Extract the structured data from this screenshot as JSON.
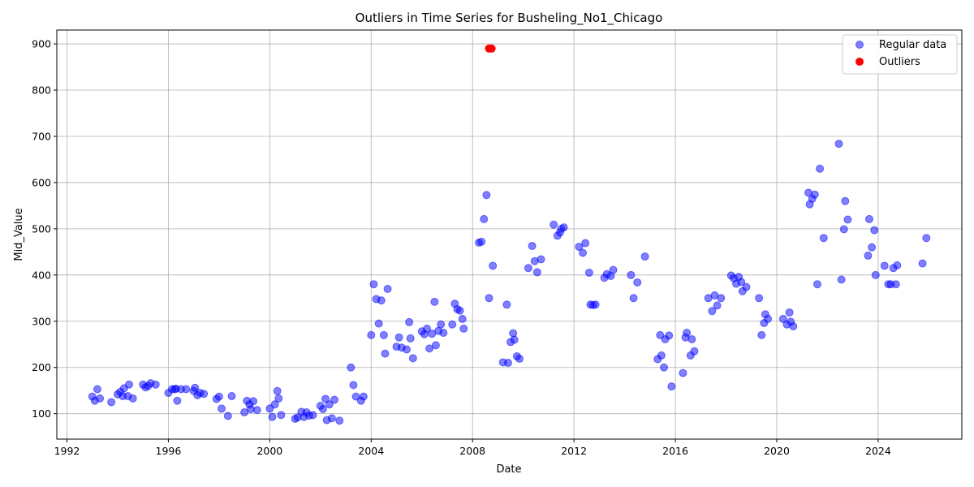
{
  "chart_data": {
    "type": "scatter",
    "title": "Outliers in Time Series for Busheling_No1_Chicago",
    "xlabel": "Date",
    "ylabel": "Mid_Value",
    "xlim": [
      1991.6,
      2027.3
    ],
    "ylim": [
      45,
      930
    ],
    "x_ticks": [
      1992,
      1996,
      2000,
      2004,
      2008,
      2012,
      2016,
      2020,
      2024
    ],
    "y_ticks": [
      100,
      200,
      300,
      400,
      500,
      600,
      700,
      800,
      900
    ],
    "grid": true,
    "legend_position": "top-right",
    "series": [
      {
        "name": "Regular data",
        "color": "#0000ff",
        "alpha": 0.5,
        "points": [
          [
            1993.0,
            137
          ],
          [
            1993.1,
            128
          ],
          [
            1993.2,
            153
          ],
          [
            1993.3,
            133
          ],
          [
            1993.75,
            125
          ],
          [
            1994.0,
            142
          ],
          [
            1994.1,
            147
          ],
          [
            1994.2,
            138
          ],
          [
            1994.25,
            155
          ],
          [
            1994.4,
            138
          ],
          [
            1994.45,
            163
          ],
          [
            1994.6,
            133
          ],
          [
            1995.0,
            163
          ],
          [
            1995.1,
            157
          ],
          [
            1995.2,
            160
          ],
          [
            1995.3,
            166
          ],
          [
            1995.5,
            163
          ],
          [
            1996.0,
            145
          ],
          [
            1996.15,
            153
          ],
          [
            1996.25,
            153
          ],
          [
            1996.3,
            154
          ],
          [
            1996.35,
            128
          ],
          [
            1996.5,
            153
          ],
          [
            1996.7,
            153
          ],
          [
            1997.0,
            149
          ],
          [
            1997.05,
            156
          ],
          [
            1997.15,
            140
          ],
          [
            1997.25,
            145
          ],
          [
            1997.4,
            143
          ],
          [
            1997.9,
            132
          ],
          [
            1998.0,
            137
          ],
          [
            1998.1,
            111
          ],
          [
            1998.35,
            95
          ],
          [
            1998.5,
            138
          ],
          [
            1999.0,
            103
          ],
          [
            1999.1,
            128
          ],
          [
            1999.2,
            120
          ],
          [
            1999.25,
            110
          ],
          [
            1999.35,
            127
          ],
          [
            1999.5,
            108
          ],
          [
            2000.0,
            111
          ],
          [
            2000.1,
            93
          ],
          [
            2000.2,
            120
          ],
          [
            2000.3,
            149
          ],
          [
            2000.35,
            133
          ],
          [
            2000.45,
            97
          ],
          [
            2001.0,
            89
          ],
          [
            2001.1,
            92
          ],
          [
            2001.25,
            104
          ],
          [
            2001.35,
            93
          ],
          [
            2001.45,
            103
          ],
          [
            2001.55,
            96
          ],
          [
            2001.7,
            97
          ],
          [
            2002.0,
            117
          ],
          [
            2002.1,
            110
          ],
          [
            2002.2,
            132
          ],
          [
            2002.25,
            86
          ],
          [
            2002.35,
            120
          ],
          [
            2002.45,
            90
          ],
          [
            2002.55,
            130
          ],
          [
            2002.75,
            85
          ],
          [
            2003.2,
            200
          ],
          [
            2003.3,
            162
          ],
          [
            2003.4,
            137
          ],
          [
            2003.6,
            128
          ],
          [
            2003.7,
            137
          ],
          [
            2004.0,
            270
          ],
          [
            2004.1,
            380
          ],
          [
            2004.2,
            348
          ],
          [
            2004.3,
            295
          ],
          [
            2004.4,
            345
          ],
          [
            2004.5,
            270
          ],
          [
            2004.55,
            230
          ],
          [
            2004.65,
            370
          ],
          [
            2005.0,
            245
          ],
          [
            2005.1,
            265
          ],
          [
            2005.2,
            243
          ],
          [
            2005.4,
            239
          ],
          [
            2005.5,
            298
          ],
          [
            2005.55,
            263
          ],
          [
            2005.65,
            220
          ],
          [
            2006.0,
            278
          ],
          [
            2006.1,
            272
          ],
          [
            2006.2,
            284
          ],
          [
            2006.3,
            241
          ],
          [
            2006.4,
            273
          ],
          [
            2006.5,
            342
          ],
          [
            2006.55,
            248
          ],
          [
            2006.65,
            279
          ],
          [
            2006.75,
            293
          ],
          [
            2006.85,
            275
          ],
          [
            2007.2,
            293
          ],
          [
            2007.3,
            338
          ],
          [
            2007.4,
            326
          ],
          [
            2007.5,
            323
          ],
          [
            2007.6,
            305
          ],
          [
            2007.65,
            284
          ],
          [
            2008.25,
            470
          ],
          [
            2008.35,
            472
          ],
          [
            2008.45,
            521
          ],
          [
            2008.55,
            573
          ],
          [
            2008.65,
            350
          ],
          [
            2008.8,
            420
          ],
          [
            2009.2,
            211
          ],
          [
            2009.35,
            336
          ],
          [
            2009.4,
            210
          ],
          [
            2009.5,
            255
          ],
          [
            2009.6,
            274
          ],
          [
            2009.65,
            260
          ],
          [
            2009.75,
            224
          ],
          [
            2009.85,
            219
          ],
          [
            2010.2,
            415
          ],
          [
            2010.35,
            463
          ],
          [
            2010.45,
            430
          ],
          [
            2010.55,
            406
          ],
          [
            2010.7,
            434
          ],
          [
            2011.2,
            509
          ],
          [
            2011.35,
            485
          ],
          [
            2011.45,
            492
          ],
          [
            2011.5,
            500
          ],
          [
            2011.6,
            503
          ],
          [
            2012.2,
            461
          ],
          [
            2012.35,
            448
          ],
          [
            2012.45,
            469
          ],
          [
            2012.6,
            405
          ],
          [
            2012.65,
            336
          ],
          [
            2012.75,
            335
          ],
          [
            2012.85,
            336
          ],
          [
            2013.2,
            394
          ],
          [
            2013.3,
            402
          ],
          [
            2013.45,
            398
          ],
          [
            2013.55,
            411
          ],
          [
            2014.25,
            400
          ],
          [
            2014.35,
            350
          ],
          [
            2014.5,
            384
          ],
          [
            2014.8,
            440
          ],
          [
            2015.3,
            218
          ],
          [
            2015.4,
            270
          ],
          [
            2015.45,
            226
          ],
          [
            2015.55,
            200
          ],
          [
            2015.6,
            261
          ],
          [
            2015.75,
            269
          ],
          [
            2015.85,
            159
          ],
          [
            2016.3,
            188
          ],
          [
            2016.4,
            265
          ],
          [
            2016.45,
            275
          ],
          [
            2016.6,
            226
          ],
          [
            2016.65,
            261
          ],
          [
            2016.75,
            235
          ],
          [
            2017.3,
            350
          ],
          [
            2017.45,
            322
          ],
          [
            2017.55,
            356
          ],
          [
            2017.65,
            334
          ],
          [
            2017.8,
            350
          ],
          [
            2018.2,
            399
          ],
          [
            2018.3,
            393
          ],
          [
            2018.4,
            381
          ],
          [
            2018.5,
            396
          ],
          [
            2018.6,
            385
          ],
          [
            2018.65,
            365
          ],
          [
            2018.8,
            374
          ],
          [
            2019.3,
            350
          ],
          [
            2019.4,
            270
          ],
          [
            2019.5,
            296
          ],
          [
            2019.55,
            315
          ],
          [
            2019.65,
            305
          ],
          [
            2020.25,
            305
          ],
          [
            2020.4,
            293
          ],
          [
            2020.5,
            319
          ],
          [
            2020.55,
            299
          ],
          [
            2020.65,
            289
          ],
          [
            2021.25,
            578
          ],
          [
            2021.3,
            553
          ],
          [
            2021.4,
            565
          ],
          [
            2021.5,
            574
          ],
          [
            2021.6,
            380
          ],
          [
            2021.7,
            630
          ],
          [
            2021.85,
            480
          ],
          [
            2022.45,
            684
          ],
          [
            2022.55,
            390
          ],
          [
            2022.65,
            499
          ],
          [
            2022.7,
            560
          ],
          [
            2022.8,
            520
          ],
          [
            2023.6,
            442
          ],
          [
            2023.65,
            521
          ],
          [
            2023.75,
            460
          ],
          [
            2023.85,
            497
          ],
          [
            2023.9,
            400
          ],
          [
            2024.25,
            420
          ],
          [
            2024.4,
            380
          ],
          [
            2024.5,
            380
          ],
          [
            2024.6,
            415
          ],
          [
            2024.7,
            380
          ],
          [
            2024.75,
            421
          ],
          [
            2025.75,
            425
          ],
          [
            2025.9,
            480
          ]
        ]
      },
      {
        "name": "Outliers",
        "color": "#ff0000",
        "alpha": 1.0,
        "points": [
          [
            2008.65,
            890
          ],
          [
            2008.75,
            890
          ]
        ]
      }
    ]
  }
}
